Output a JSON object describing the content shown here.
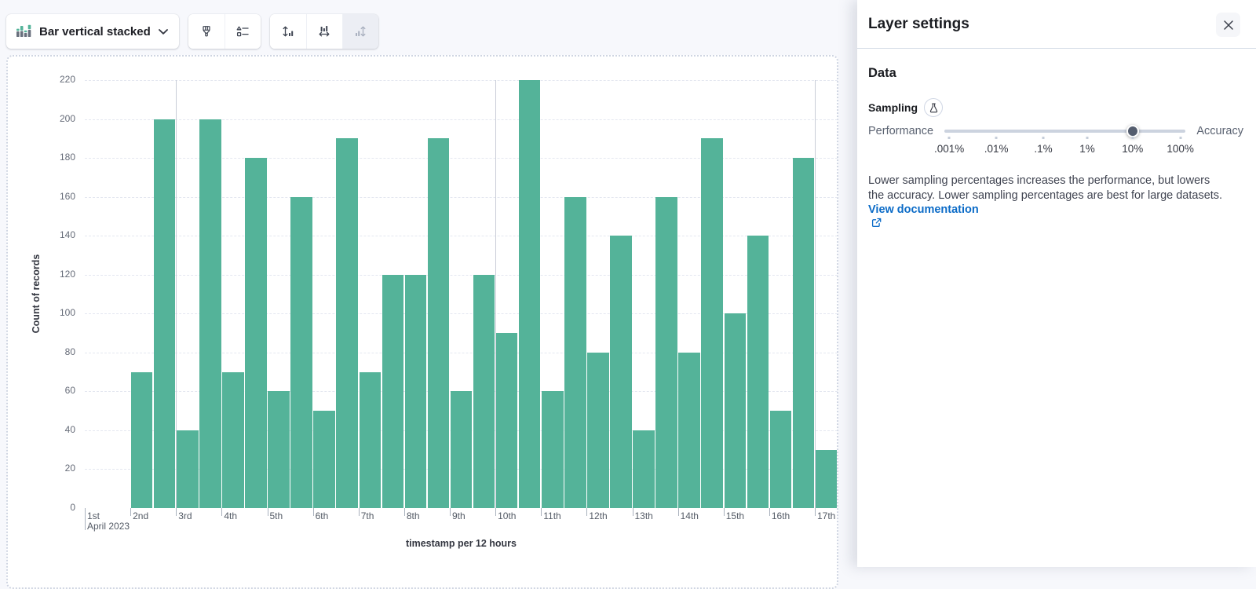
{
  "toolbar": {
    "chart_type_label": "Bar vertical stacked",
    "style_buttons": [
      "visual-options",
      "legend"
    ],
    "axes_buttons": [
      "left-axis",
      "bottom-axis",
      "right-axis"
    ],
    "right_axis_disabled": true
  },
  "chart": {
    "x_first_sub_label": "April 2023"
  },
  "chart_data": {
    "type": "bar",
    "title": "",
    "ylabel": "Count of records",
    "xlabel": "timestamp per 12 hours",
    "ylim": [
      0,
      220
    ],
    "y_ticks": [
      0,
      20,
      40,
      60,
      80,
      100,
      120,
      140,
      160,
      180,
      200,
      220
    ],
    "x_tick_labels": [
      "1st",
      "2nd",
      "3rd",
      "4th",
      "5th",
      "6th",
      "7th",
      "8th",
      "9th",
      "10th",
      "11th",
      "12th",
      "13th",
      "14th",
      "15th",
      "16th",
      "17th"
    ],
    "week_gridlines": [
      "3rd",
      "10th",
      "17th"
    ],
    "grid": true,
    "legend": "none",
    "bar_color": "#54b399",
    "x": [
      "Apr 2 00:00",
      "Apr 2 12:00",
      "Apr 3 00:00",
      "Apr 3 12:00",
      "Apr 4 00:00",
      "Apr 4 12:00",
      "Apr 5 00:00",
      "Apr 5 12:00",
      "Apr 6 00:00",
      "Apr 6 12:00",
      "Apr 7 00:00",
      "Apr 7 12:00",
      "Apr 8 00:00",
      "Apr 8 12:00",
      "Apr 9 00:00",
      "Apr 9 12:00",
      "Apr 10 00:00",
      "Apr 10 12:00",
      "Apr 11 00:00",
      "Apr 11 12:00",
      "Apr 12 00:00",
      "Apr 12 12:00",
      "Apr 13 00:00",
      "Apr 13 12:00",
      "Apr 14 00:00",
      "Apr 14 12:00",
      "Apr 15 00:00",
      "Apr 15 12:00",
      "Apr 16 00:00",
      "Apr 16 12:00",
      "Apr 17 00:00"
    ],
    "values": [
      70,
      200,
      40,
      200,
      70,
      180,
      60,
      160,
      50,
      190,
      70,
      120,
      120,
      190,
      60,
      120,
      90,
      220,
      60,
      160,
      80,
      140,
      40,
      160,
      80,
      190,
      100,
      140,
      50,
      180,
      30
    ]
  },
  "layer_settings": {
    "title": "Layer settings",
    "section_title": "Data",
    "sampling": {
      "label": "Sampling",
      "left_label": "Performance",
      "right_label": "Accuracy",
      "stops": [
        ".001%",
        ".01%",
        ".1%",
        "1%",
        "10%",
        "100%"
      ],
      "selected_value": "10%",
      "description": "Lower sampling percentages increases the performance, but lowers the accuracy. Lower sampling percentages are best for large datasets.",
      "link_label": "View documentation"
    }
  },
  "colors": {
    "bar": "#54b399",
    "icon_gray": "#69707d",
    "link_blue": "#0b6bc7",
    "slider_thumb": "#545d6e"
  }
}
